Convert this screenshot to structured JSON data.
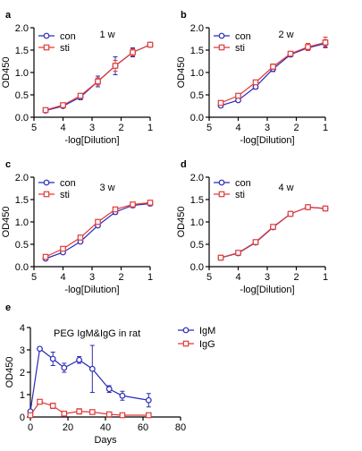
{
  "colors": {
    "con": "#2b2bb8",
    "sti": "#e03a3a"
  },
  "chart_data": [
    {
      "type": "line",
      "letter": "a",
      "title": "1 w",
      "xlabel": "-log[Dilution]",
      "ylabel": "OD450",
      "xlim": [
        5,
        1
      ],
      "ylim": [
        0,
        2
      ],
      "xticks": [
        "5",
        "4",
        "3",
        "2",
        "1"
      ],
      "yticks": [
        "0.0",
        "0.5",
        "1.0",
        "1.5",
        "2.0"
      ],
      "x_reversed": true,
      "legend": "top-left",
      "series": [
        {
          "name": "con",
          "marker": "circle",
          "x": [
            4.6,
            4.0,
            3.4,
            2.8,
            2.2,
            1.6,
            1.0
          ],
          "y": [
            0.15,
            0.25,
            0.45,
            0.8,
            1.15,
            1.45,
            1.62
          ],
          "err": [
            0.02,
            0.04,
            0.06,
            0.12,
            0.2,
            0.1,
            0.04
          ]
        },
        {
          "name": "sti",
          "marker": "square",
          "x": [
            4.6,
            4.0,
            3.4,
            2.8,
            2.2,
            1.6,
            1.0
          ],
          "y": [
            0.16,
            0.27,
            0.48,
            0.8,
            1.15,
            1.45,
            1.62
          ],
          "err": [
            0.02,
            0.04,
            0.05,
            0.08,
            0.12,
            0.08,
            0.04
          ]
        }
      ]
    },
    {
      "type": "line",
      "letter": "b",
      "title": "2 w",
      "xlabel": "-log[Dilution]",
      "ylabel": "OD450",
      "xlim": [
        5,
        1
      ],
      "ylim": [
        0,
        2
      ],
      "xticks": [
        "5",
        "4",
        "3",
        "2",
        "1"
      ],
      "yticks": [
        "0.0",
        "0.5",
        "1.0",
        "1.5",
        "2.0"
      ],
      "x_reversed": true,
      "legend": "top-left",
      "series": [
        {
          "name": "con",
          "marker": "circle",
          "x": [
            4.6,
            4.0,
            3.4,
            2.8,
            2.2,
            1.6,
            1.0
          ],
          "y": [
            0.26,
            0.38,
            0.68,
            1.08,
            1.4,
            1.55,
            1.65
          ],
          "err": [
            0.04,
            0.04,
            0.05,
            0.06,
            0.05,
            0.06,
            0.08
          ]
        },
        {
          "name": "sti",
          "marker": "square",
          "x": [
            4.6,
            4.0,
            3.4,
            2.8,
            2.2,
            1.6,
            1.0
          ],
          "y": [
            0.32,
            0.48,
            0.78,
            1.13,
            1.42,
            1.57,
            1.67
          ],
          "err": [
            0.03,
            0.04,
            0.05,
            0.06,
            0.05,
            0.08,
            0.12
          ]
        }
      ]
    },
    {
      "type": "line",
      "letter": "c",
      "title": "3 w",
      "xlabel": "-log[Dilution]",
      "ylabel": "OD450",
      "xlim": [
        5,
        1
      ],
      "ylim": [
        0,
        2
      ],
      "xticks": [
        "5",
        "4",
        "3",
        "2",
        "1"
      ],
      "yticks": [
        "0.0",
        "0.5",
        "1.0",
        "1.5",
        "2.0"
      ],
      "x_reversed": true,
      "legend": "top-left",
      "series": [
        {
          "name": "con",
          "marker": "circle",
          "x": [
            4.6,
            4.0,
            3.4,
            2.8,
            2.2,
            1.6,
            1.0
          ],
          "y": [
            0.18,
            0.32,
            0.56,
            0.92,
            1.22,
            1.37,
            1.41
          ],
          "err": [
            0.02,
            0.03,
            0.03,
            0.04,
            0.05,
            0.05,
            0.05
          ]
        },
        {
          "name": "sti",
          "marker": "square",
          "x": [
            4.6,
            4.0,
            3.4,
            2.8,
            2.2,
            1.6,
            1.0
          ],
          "y": [
            0.22,
            0.4,
            0.65,
            1.0,
            1.28,
            1.39,
            1.43
          ],
          "err": [
            0.02,
            0.03,
            0.04,
            0.04,
            0.05,
            0.05,
            0.04
          ]
        }
      ]
    },
    {
      "type": "line",
      "letter": "d",
      "title": "4 w",
      "xlabel": "-log[Dilution]",
      "ylabel": "OD450",
      "xlim": [
        5,
        1
      ],
      "ylim": [
        0,
        2
      ],
      "xticks": [
        "5",
        "4",
        "3",
        "2",
        "1"
      ],
      "yticks": [
        "0.0",
        "0.5",
        "1.0",
        "1.5",
        "2.0"
      ],
      "x_reversed": true,
      "legend": "top-left",
      "series": [
        {
          "name": "con",
          "marker": "circle",
          "x": [
            4.6,
            4.0,
            3.4,
            2.8,
            2.2,
            1.6,
            1.0
          ],
          "y": [
            0.2,
            0.3,
            0.54,
            0.88,
            1.18,
            1.33,
            1.3
          ],
          "err": [
            0.02,
            0.02,
            0.03,
            0.03,
            0.03,
            0.03,
            0.03
          ]
        },
        {
          "name": "sti",
          "marker": "square",
          "x": [
            4.6,
            4.0,
            3.4,
            2.8,
            2.2,
            1.6,
            1.0
          ],
          "y": [
            0.2,
            0.31,
            0.55,
            0.89,
            1.18,
            1.33,
            1.3
          ],
          "err": [
            0.02,
            0.02,
            0.03,
            0.03,
            0.03,
            0.03,
            0.03
          ]
        }
      ]
    },
    {
      "type": "line",
      "letter": "e",
      "title": "PEG IgM&IgG in rat",
      "xlabel": "Days",
      "ylabel": "OD450",
      "xlim": [
        0,
        80
      ],
      "ylim": [
        0,
        4
      ],
      "xticks": [
        "0",
        "20",
        "40",
        "60",
        "80"
      ],
      "yticks": [
        "0",
        "1",
        "2",
        "3",
        "4"
      ],
      "x_reversed": false,
      "legend": "top-right",
      "series": [
        {
          "name": "IgM",
          "marker": "circle",
          "x": [
            0,
            5,
            12,
            18,
            26,
            33,
            42,
            49,
            63
          ],
          "y": [
            0.25,
            3.05,
            2.6,
            2.2,
            2.55,
            2.15,
            1.25,
            0.95,
            0.75
          ],
          "err": [
            0.0,
            0.05,
            0.3,
            0.2,
            0.15,
            1.05,
            0.15,
            0.2,
            0.3
          ]
        },
        {
          "name": "IgG",
          "marker": "square",
          "x": [
            0,
            5,
            12,
            18,
            26,
            33,
            42,
            49,
            63
          ],
          "y": [
            0.08,
            0.68,
            0.5,
            0.15,
            0.25,
            0.22,
            0.12,
            0.08,
            0.08
          ],
          "err": [
            0.0,
            0.06,
            0.12,
            0.05,
            0.12,
            0.1,
            0.04,
            0.03,
            0.03
          ]
        }
      ]
    }
  ]
}
